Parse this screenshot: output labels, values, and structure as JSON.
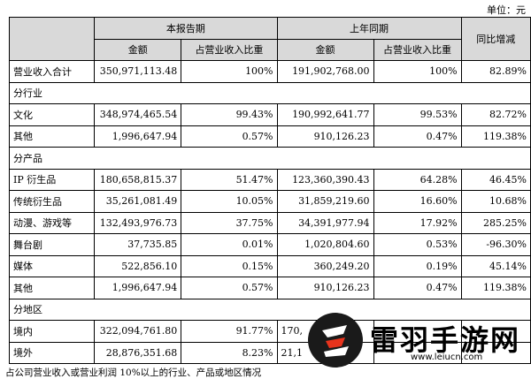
{
  "unit": "单位：元",
  "header": {
    "current": "本报告期",
    "prior": "上年同期",
    "yoy": "同比增减",
    "amount": "金额",
    "ratio": "占营业收入比重"
  },
  "total": {
    "label": "营业收入合计",
    "cur_amt": "350,971,113.48",
    "cur_pct": "100%",
    "pri_amt": "191,902,768.00",
    "pri_pct": "100%",
    "yoy": "82.89%"
  },
  "sections": {
    "industry": "分行业",
    "product": "分产品",
    "region": "分地区"
  },
  "rows": [
    {
      "label": "文化",
      "cur_amt": "348,974,465.54",
      "cur_pct": "99.43%",
      "pri_amt": "190,992,641.77",
      "pri_pct": "99.53%",
      "yoy": "82.72%"
    },
    {
      "label": "其他",
      "cur_amt": "1,996,647.94",
      "cur_pct": "0.57%",
      "pri_amt": "910,126.23",
      "pri_pct": "0.47%",
      "yoy": "119.38%"
    },
    {
      "label": "IP 衍生品",
      "cur_amt": "180,658,815.37",
      "cur_pct": "51.47%",
      "pri_amt": "123,360,390.43",
      "pri_pct": "64.28%",
      "yoy": "46.45%"
    },
    {
      "label": "传统衍生品",
      "cur_amt": "35,261,081.49",
      "cur_pct": "10.05%",
      "pri_amt": "31,859,219.60",
      "pri_pct": "16.60%",
      "yoy": "10.68%"
    },
    {
      "label": "动漫、游戏等",
      "cur_amt": "132,493,976.73",
      "cur_pct": "37.75%",
      "pri_amt": "34,391,977.94",
      "pri_pct": "17.92%",
      "yoy": "285.25%"
    },
    {
      "label": "舞台剧",
      "cur_amt": "37,735.85",
      "cur_pct": "0.01%",
      "pri_amt": "1,020,804.60",
      "pri_pct": "0.53%",
      "yoy": "-96.30%"
    },
    {
      "label": "媒体",
      "cur_amt": "522,856.10",
      "cur_pct": "0.15%",
      "pri_amt": "360,249.20",
      "pri_pct": "0.19%",
      "yoy": "45.14%"
    },
    {
      "label": "其他",
      "cur_amt": "1,996,647.94",
      "cur_pct": "0.57%",
      "pri_amt": "910,126.23",
      "pri_pct": "0.47%",
      "yoy": "119.38%"
    },
    {
      "label": "境内",
      "cur_amt": "322,094,761.80",
      "cur_pct": "91.77%",
      "pri_amt": "170,",
      "pri_pct": "",
      "yoy": ""
    },
    {
      "label": "境外",
      "cur_amt": "28,876,351.68",
      "cur_pct": "8.23%",
      "pri_amt": "21,1",
      "pri_pct": "",
      "yoy": ""
    }
  ],
  "footnote": "占公司营业收入或营业利润 10%以上的行业、产品或地区情况",
  "watermark": {
    "title": "雷羽手游网",
    "url": "www.leiucn.com"
  }
}
